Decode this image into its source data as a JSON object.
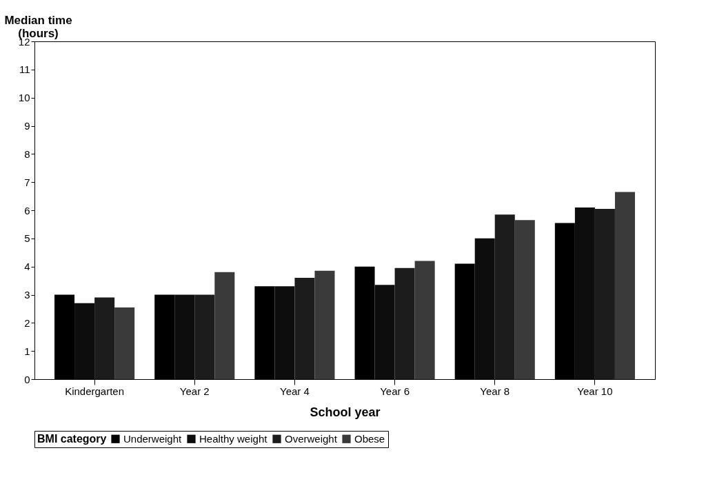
{
  "chart_data": {
    "type": "bar",
    "xlabel": "School year",
    "ylabel": "Median time\n(hours)",
    "legend_title": "BMI category",
    "categories": [
      "Kindergarten",
      "Year 2",
      "Year 4",
      "Year 6",
      "Year 8",
      "Year 10"
    ],
    "series": [
      {
        "name": "Underweight",
        "color": "#000000",
        "values": [
          3.0,
          3.0,
          3.3,
          4.0,
          4.1,
          5.55
        ]
      },
      {
        "name": "Healthy weight",
        "color": "#0d0d0d",
        "values": [
          2.7,
          3.0,
          3.3,
          3.35,
          5.0,
          6.1
        ]
      },
      {
        "name": "Overweight",
        "color": "#1c1c1c",
        "values": [
          2.9,
          3.0,
          3.6,
          3.95,
          5.85,
          6.05
        ]
      },
      {
        "name": "Obese",
        "color": "#3a3a3a",
        "values": [
          2.55,
          3.8,
          3.85,
          4.2,
          5.65,
          6.65
        ]
      }
    ],
    "ylim": [
      0,
      12
    ],
    "yticks": [
      0,
      1,
      2,
      3,
      4,
      5,
      6,
      7,
      8,
      9,
      10,
      11,
      12
    ],
    "grid": false,
    "legend": "bottom"
  }
}
